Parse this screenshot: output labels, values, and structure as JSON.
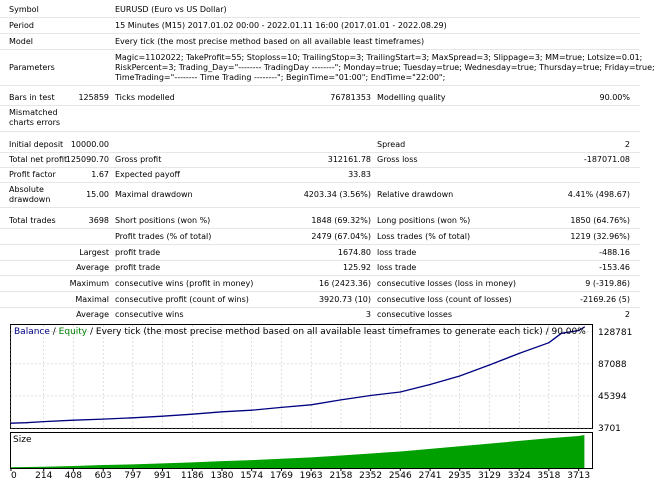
{
  "report": {
    "symbol_label": "Symbol",
    "symbol_value": "EURUSD (Euro vs US Dollar)",
    "period_label": "Period",
    "period_value": "15 Minutes (M15) 2017.01.02 00:00 - 2022.01.11 16:00 (2017.01.01 - 2022.08.29)",
    "model_label": "Model",
    "model_value": "Every tick (the most precise method based on all available least timeframes)",
    "parameters_label": "Parameters",
    "parameters_line1": "Magic=1102022; TakeProfit=55; Stoploss=10; TrailingStop=3; TrailingStart=3; MaxSpread=3; Slippage=3; MM=true; Lotsize=0.01;",
    "parameters_line2": "RiskPercent=3; Trading_Day=\"-------- TradingDay --------\"; Monday=true; Tuesday=true; Wednesday=true; Thursday=true; Friday=true;",
    "parameters_line3": "TimeTrading=\"-------- Time Trading --------\"; BeginTime=\"01:00\"; EndTime=\"22:00\";",
    "bars_label": "Bars in test",
    "bars_value": "125859",
    "ticks_label": "Ticks modelled",
    "ticks_value": "76781353",
    "quality_label": "Modelling quality",
    "quality_value": "90.00%",
    "mismatched_label_1": "Mismatched",
    "mismatched_label_2": "charts errors",
    "initial_deposit_label": "Initial deposit",
    "initial_deposit_value": "10000.00",
    "spread_label": "Spread",
    "spread_value": "2",
    "net_profit_label": "Total net profit",
    "net_profit_value": "125090.70",
    "gross_profit_label": "Gross profit",
    "gross_profit_value": "312161.78",
    "gross_loss_label": "Gross loss",
    "gross_loss_value": "-187071.08",
    "profit_factor_label": "Profit factor",
    "profit_factor_value": "1.67",
    "expected_payoff_label": "Expected payoff",
    "expected_payoff_value": "33.83",
    "abs_dd_label_1": "Absolute",
    "abs_dd_label_2": "drawdown",
    "abs_dd_value": "15.00",
    "max_dd_label": "Maximal drawdown",
    "max_dd_value": "4203.34 (3.56%)",
    "rel_dd_label": "Relative drawdown",
    "rel_dd_value": "4.41% (498.67)",
    "total_trades_label": "Total trades",
    "total_trades_value": "3698",
    "short_label": "Short positions (won %)",
    "short_value": "1848 (69.32%)",
    "long_label": "Long positions (won %)",
    "long_value": "1850 (64.76%)",
    "profit_trades_label": "Profit trades (% of total)",
    "profit_trades_value": "2479 (67.04%)",
    "loss_trades_label": "Loss trades (% of total)",
    "loss_trades_value": "1219 (32.96%)",
    "largest_label": "Largest",
    "largest_profit_label": "profit trade",
    "largest_profit_value": "1674.80",
    "largest_loss_label": "loss trade",
    "largest_loss_value": "-488.16",
    "average_label": "Average",
    "average_profit_label": "profit trade",
    "average_profit_value": "125.92",
    "average_loss_label": "loss trade",
    "average_loss_value": "-153.46",
    "maximum_label": "Maximum",
    "max_consec_wins_label": "consecutive wins (profit in money)",
    "max_consec_wins_value": "16 (2423.36)",
    "max_consec_losses_label": "consecutive losses (loss in money)",
    "max_consec_losses_value": "9 (-319.86)",
    "maximal_label": "Maximal",
    "maximal_consec_profit_label": "consecutive profit (count of wins)",
    "maximal_consec_profit_value": "3920.73 (10)",
    "maximal_consec_loss_label": "consecutive loss (count of losses)",
    "maximal_consec_loss_value": "-2169.26 (5)",
    "average2_label": "Average",
    "avg_consec_wins_label": "consecutive wins",
    "avg_consec_wins_value": "3",
    "avg_consec_losses_label": "consecutive losses",
    "avg_consec_losses_value": "2"
  },
  "chart_data": {
    "type": "line",
    "legend": {
      "balance": "Balance",
      "separator": " / ",
      "equity": "Equity",
      "description": " / Every tick (the most precise method based on all available least timeframes to generate each tick) / 90.00%"
    },
    "size_label": "Size",
    "y_ticks": [
      128781,
      87088,
      45394,
      3701
    ],
    "x_ticks": [
      0,
      214,
      408,
      603,
      797,
      991,
      1186,
      1380,
      1574,
      1769,
      1963,
      2158,
      2352,
      2546,
      2741,
      2935,
      3129,
      3324,
      3518,
      3713
    ],
    "xlim": [
      0,
      3800
    ],
    "ylim": [
      3701,
      135000
    ],
    "colors": {
      "balance": "#000080",
      "equity": "#008000",
      "size_fill": "#00a000",
      "grid": "#c0c0c0",
      "panel_bg": "#ffffff"
    },
    "series": [
      {
        "name": "Balance",
        "x": [
          0,
          100,
          214,
          408,
          603,
          797,
          991,
          1186,
          1380,
          1574,
          1769,
          1963,
          2158,
          2352,
          2546,
          2741,
          2935,
          3129,
          3324,
          3518,
          3600,
          3713,
          3750
        ],
        "values": [
          10000,
          10600,
          12000,
          13800,
          15300,
          17000,
          19000,
          21700,
          24800,
          26800,
          30500,
          33800,
          40200,
          45900,
          50500,
          60300,
          71300,
          85600,
          100700,
          114600,
          126800,
          130400,
          135000
        ]
      }
    ],
    "size_series": {
      "x": [
        0,
        214,
        408,
        603,
        797,
        991,
        1186,
        1380,
        1574,
        1769,
        1963,
        2158,
        2352,
        2546,
        2741,
        2935,
        3129,
        3324,
        3518,
        3713,
        3750
      ],
      "values": [
        0.02,
        0.04,
        0.06,
        0.09,
        0.11,
        0.14,
        0.17,
        0.21,
        0.24,
        0.28,
        0.32,
        0.38,
        0.44,
        0.5,
        0.58,
        0.66,
        0.74,
        0.82,
        0.9,
        0.97,
        1.0
      ]
    }
  }
}
